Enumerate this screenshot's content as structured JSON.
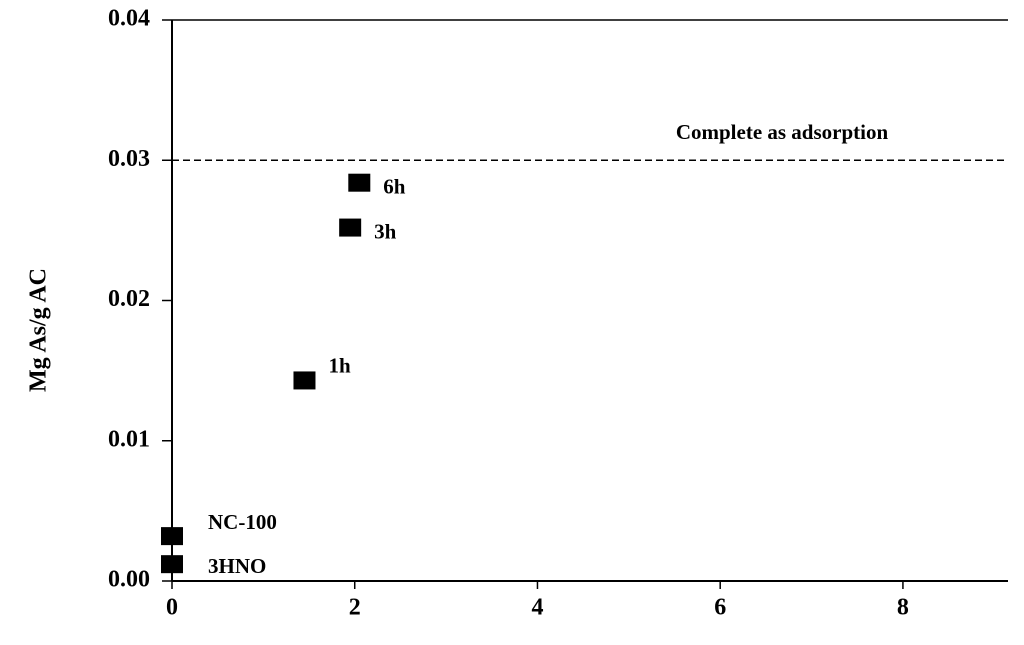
{
  "chart_data": {
    "type": "scatter",
    "y_label": "Mg As/g AC",
    "series": [
      {
        "color": "#000000",
        "x": [
          0,
          0,
          1.45,
          1.95,
          2.05
        ],
        "values": [
          0.0012,
          0.0032,
          0.0143,
          0.0252,
          0.0284
        ],
        "point_labels": [
          "3HNO",
          "NC-100",
          "1h",
          "3h",
          "6h"
        ]
      }
    ],
    "reference_line": {
      "value": 0.03,
      "label": "Complete as adsorption"
    },
    "xlim": [
      0,
      9.15
    ],
    "ylim": [
      0,
      0.04
    ],
    "xticks": [
      0,
      2,
      4,
      6,
      8
    ],
    "yticks": [
      {
        "value": 0,
        "label": "0.00"
      },
      {
        "value": 0.01,
        "label": "0.01"
      },
      {
        "value": 0.02,
        "label": "0.02"
      },
      {
        "value": 0.03,
        "label": "0.03"
      },
      {
        "value": 0.04,
        "label": "0.04"
      }
    ]
  }
}
